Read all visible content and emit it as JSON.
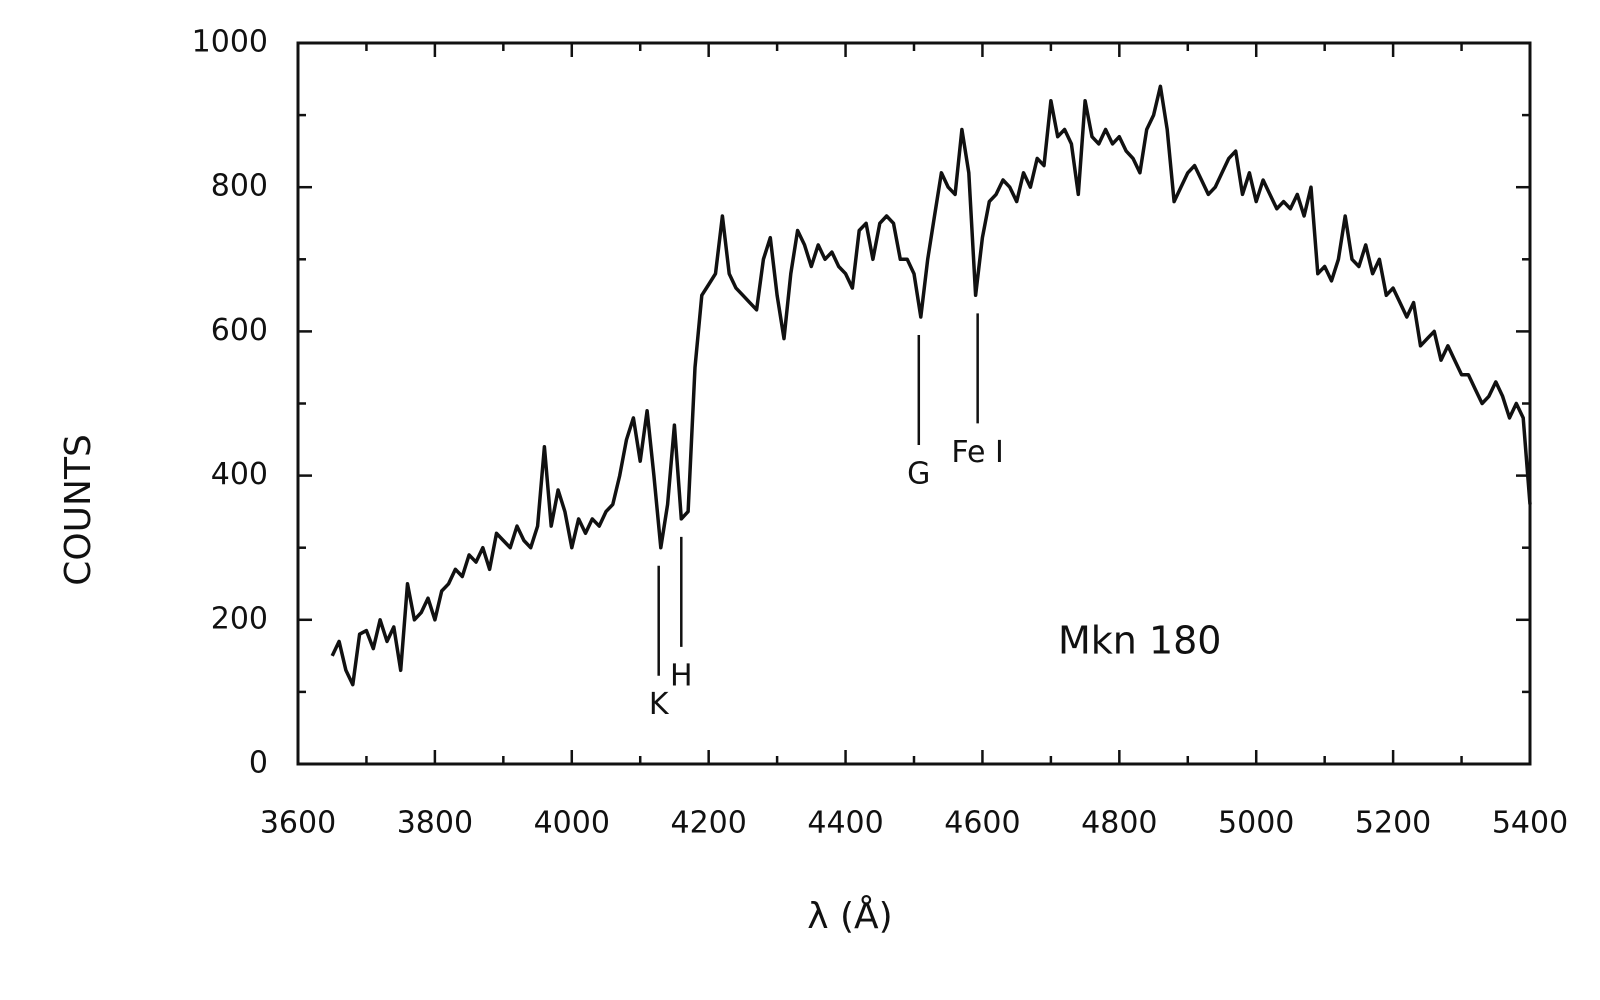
{
  "chart_data": {
    "type": "line",
    "xlabel": "λ (Å)",
    "ylabel": "COUNTS",
    "label": "Mkn 180",
    "x": [
      3650,
      3660,
      3670,
      3680,
      3690,
      3700,
      3710,
      3720,
      3730,
      3740,
      3750,
      3760,
      3770,
      3780,
      3790,
      3800,
      3810,
      3820,
      3830,
      3840,
      3850,
      3860,
      3870,
      3880,
      3890,
      3900,
      3910,
      3920,
      3930,
      3940,
      3950,
      3960,
      3970,
      3980,
      3990,
      4000,
      4010,
      4020,
      4030,
      4040,
      4050,
      4060,
      4070,
      4080,
      4090,
      4100,
      4110,
      4120,
      4130,
      4140,
      4150,
      4160,
      4170,
      4180,
      4190,
      4200,
      4210,
      4220,
      4230,
      4240,
      4250,
      4260,
      4270,
      4280,
      4290,
      4300,
      4310,
      4320,
      4330,
      4340,
      4350,
      4360,
      4370,
      4380,
      4390,
      4400,
      4410,
      4420,
      4430,
      4440,
      4450,
      4460,
      4470,
      4480,
      4490,
      4500,
      4510,
      4520,
      4530,
      4540,
      4550,
      4560,
      4570,
      4580,
      4590,
      4600,
      4610,
      4620,
      4630,
      4640,
      4650,
      4660,
      4670,
      4680,
      4690,
      4700,
      4710,
      4720,
      4730,
      4740,
      4750,
      4760,
      4770,
      4780,
      4790,
      4800,
      4810,
      4820,
      4830,
      4840,
      4850,
      4860,
      4870,
      4880,
      4890,
      4900,
      4910,
      4920,
      4930,
      4940,
      4950,
      4960,
      4970,
      4980,
      4990,
      5000,
      5010,
      5020,
      5030,
      5040,
      5050,
      5060,
      5070,
      5080,
      5090,
      5100,
      5110,
      5120,
      5130,
      5140,
      5150,
      5160,
      5170,
      5180,
      5190,
      5200,
      5210,
      5220,
      5230,
      5240,
      5250,
      5260,
      5270,
      5280,
      5290,
      5300,
      5310,
      5320,
      5330,
      5340,
      5350,
      5360,
      5370,
      5380,
      5390,
      5400
    ],
    "values": [
      150,
      170,
      130,
      110,
      180,
      185,
      160,
      200,
      170,
      190,
      130,
      250,
      200,
      210,
      230,
      200,
      240,
      250,
      270,
      260,
      290,
      280,
      300,
      270,
      320,
      310,
      300,
      330,
      310,
      300,
      330,
      440,
      330,
      380,
      350,
      300,
      340,
      320,
      340,
      330,
      350,
      360,
      400,
      450,
      480,
      420,
      490,
      400,
      300,
      360,
      470,
      340,
      350,
      550,
      650,
      665,
      680,
      760,
      680,
      660,
      650,
      640,
      630,
      700,
      730,
      650,
      590,
      680,
      740,
      720,
      690,
      720,
      700,
      710,
      690,
      680,
      660,
      740,
      750,
      700,
      750,
      760,
      750,
      700,
      700,
      680,
      620,
      700,
      760,
      820,
      800,
      790,
      880,
      820,
      650,
      730,
      780,
      790,
      810,
      800,
      780,
      820,
      800,
      840,
      830,
      920,
      870,
      880,
      860,
      790,
      920,
      870,
      860,
      880,
      860,
      870,
      850,
      840,
      820,
      880,
      900,
      940,
      880,
      780,
      800,
      820,
      830,
      810,
      790,
      800,
      820,
      840,
      850,
      790,
      820,
      780,
      810,
      790,
      770,
      780,
      770,
      790,
      760,
      800,
      680,
      690,
      670,
      700,
      760,
      700,
      690,
      720,
      680,
      700,
      650,
      660,
      640,
      620,
      640,
      580,
      590,
      600,
      560,
      580,
      560,
      540,
      540,
      520,
      500,
      510,
      530,
      510,
      480,
      500,
      480,
      360
    ],
    "color": "#111111",
    "xlim": [
      3600,
      5400
    ],
    "xticks": [
      3600,
      3800,
      4000,
      4200,
      4400,
      4600,
      4800,
      5000,
      5200,
      5400
    ],
    "xminorticks": [
      3700,
      3900,
      4100,
      4300,
      4500,
      4700,
      4900,
      5100,
      5300
    ],
    "ylim": [
      0,
      1000
    ],
    "yticks": [
      0,
      200,
      400,
      600,
      800,
      1000
    ],
    "yminorticks": [
      100,
      300,
      500,
      700,
      900
    ],
    "annotations": [
      {
        "text": "K",
        "x": 4127
      },
      {
        "text": "H",
        "x": 4160
      },
      {
        "text": "G",
        "x": 4507
      },
      {
        "text": "Fe I",
        "x": 4593
      }
    ]
  }
}
